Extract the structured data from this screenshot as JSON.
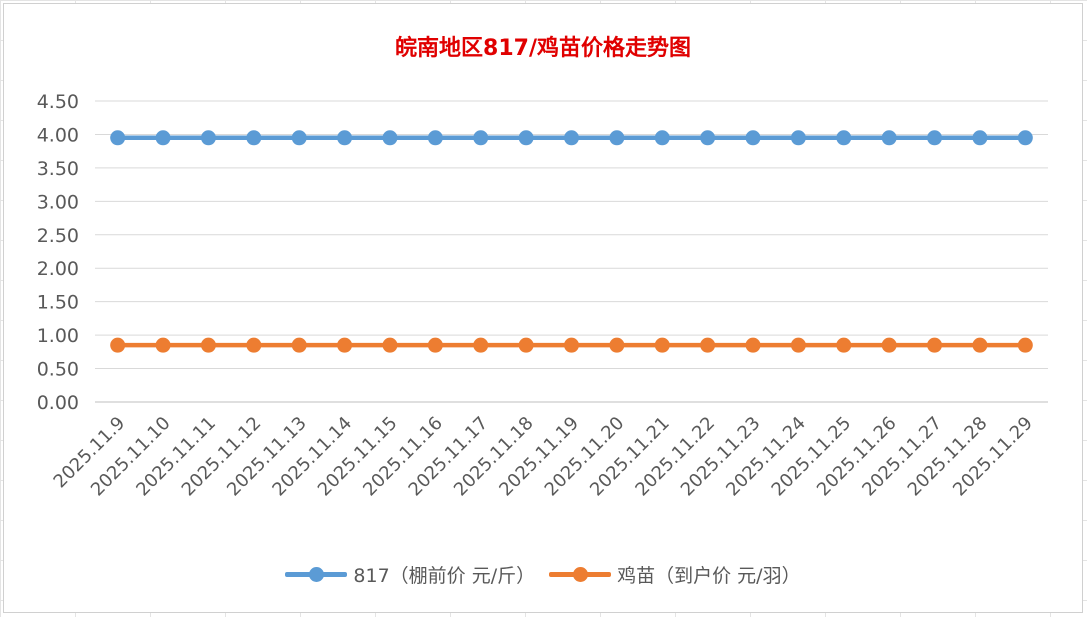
{
  "chart_data": {
    "type": "line",
    "title": "皖南地区817/鸡苗价格走势图",
    "title_color": "#e00000",
    "categories": [
      "2025.11.9",
      "2025.11.10",
      "2025.11.11",
      "2025.11.12",
      "2025.11.13",
      "2025.11.14",
      "2025.11.15",
      "2025.11.16",
      "2025.11.17",
      "2025.11.18",
      "2025.11.19",
      "2025.11.20",
      "2025.11.21",
      "2025.11.22",
      "2025.11.23",
      "2025.11.24",
      "2025.11.25",
      "2025.11.26",
      "2025.11.27",
      "2025.11.28",
      "2025.11.29"
    ],
    "series": [
      {
        "name": "817（棚前价 元/斤）",
        "color": "#5b9bd5",
        "values": [
          3.95,
          3.95,
          3.95,
          3.95,
          3.95,
          3.95,
          3.95,
          3.95,
          3.95,
          3.95,
          3.95,
          3.95,
          3.95,
          3.95,
          3.95,
          3.95,
          3.95,
          3.95,
          3.95,
          3.95,
          3.95
        ]
      },
      {
        "name": "鸡苗（到户价 元/羽）",
        "color": "#ed7d31",
        "values": [
          0.85,
          0.85,
          0.85,
          0.85,
          0.85,
          0.85,
          0.85,
          0.85,
          0.85,
          0.85,
          0.85,
          0.85,
          0.85,
          0.85,
          0.85,
          0.85,
          0.85,
          0.85,
          0.85,
          0.85,
          0.85
        ]
      }
    ],
    "yticks": [
      "0.00",
      "0.50",
      "1.00",
      "1.50",
      "2.00",
      "2.50",
      "3.00",
      "3.50",
      "4.00",
      "4.50"
    ],
    "ylim": [
      0,
      4.5
    ],
    "grid": true,
    "legend_position": "bottom"
  }
}
